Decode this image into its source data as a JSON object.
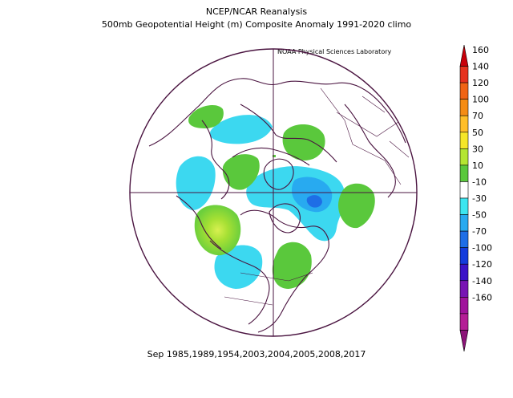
{
  "title_line1": "NCEP/NCAR Reanalysis",
  "title_line2": "500mb Geopotential Height (m) Composite Anomaly 1991-2020 climo",
  "credit": "NOAA Physical Sciences Laboratory",
  "caption": "Sep 1985,1989,1954,2003,2004,2005,2008,2017",
  "colorbar": {
    "levels": [
      {
        "label": "160",
        "color": "#c8000a"
      },
      {
        "label": "140",
        "color": "#e6321e"
      },
      {
        "label": "120",
        "color": "#f06414"
      },
      {
        "label": "100",
        "color": "#f58c14"
      },
      {
        "label": "70",
        "color": "#ffbe28"
      },
      {
        "label": "50",
        "color": "#f5e628"
      },
      {
        "label": "30",
        "color": "#b4e632"
      },
      {
        "label": "10",
        "color": "#5ac83c"
      },
      {
        "label": "-10",
        "color": "#ffffff"
      },
      {
        "label": "-30",
        "color": "#3ce6f0"
      },
      {
        "label": "-50",
        "color": "#28aaf0"
      },
      {
        "label": "-70",
        "color": "#1e6ee6"
      },
      {
        "label": "-100",
        "color": "#143cdc"
      },
      {
        "label": "-120",
        "color": "#3c14c8"
      },
      {
        "label": "-140",
        "color": "#7814b4"
      },
      {
        "label": "-160",
        "color": "#a0149c"
      },
      {
        "label": "",
        "color": "#b41e96"
      },
      {
        "label": "",
        "color": "#8c1478"
      }
    ]
  }
}
